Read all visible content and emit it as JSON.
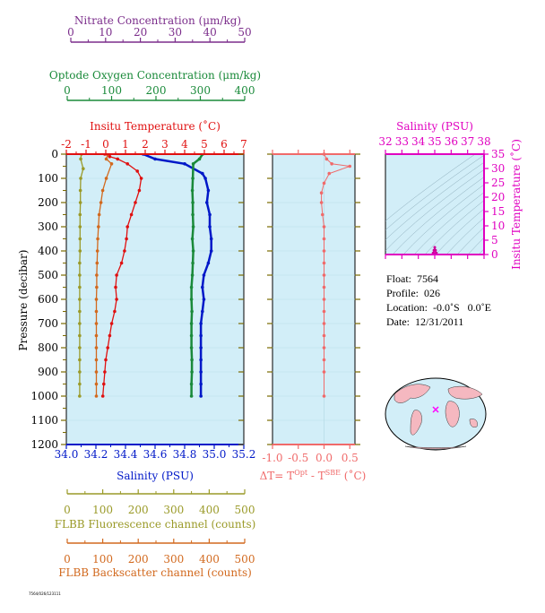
{
  "colors": {
    "nitrate": "#7b2d8b",
    "oxygen": "#1a8a3a",
    "temperature": "#e01010",
    "salinity": "#0018c8",
    "delta": "#f06a6a",
    "fluorescence": "#9a9a28",
    "backscatter": "#d2691e",
    "ts_axis": "#e000c0",
    "panel_fill": "#d2eef8",
    "land": "#f5b8c0",
    "tick": "#7a6a00"
  },
  "axes": {
    "nitrate": {
      "label": "Nitrate Concentration (μm/kg)",
      "ticks": [
        "0",
        "10",
        "20",
        "30",
        "40",
        "50"
      ],
      "range": [
        0,
        50
      ]
    },
    "oxygen": {
      "label": "Optode Oxygen Concentration (μm/kg)",
      "ticks": [
        "0",
        "100",
        "200",
        "300",
        "400"
      ],
      "range": [
        0,
        400
      ]
    },
    "temperature": {
      "label": "Insitu Temperature (˚C)",
      "ticks": [
        "-2",
        "-1",
        "0",
        "1",
        "2",
        "3",
        "4",
        "5",
        "6",
        "7"
      ],
      "range": [
        -2,
        7
      ]
    },
    "salinity": {
      "label": "Salinity (PSU)",
      "ticks": [
        "34.0",
        "34.2",
        "34.4",
        "34.6",
        "34.8",
        "35.0",
        "35.2"
      ],
      "range": [
        34.0,
        35.2
      ]
    },
    "pressure": {
      "label": "Pressure (decibar)",
      "ticks": [
        "0",
        "100",
        "200",
        "300",
        "400",
        "500",
        "600",
        "700",
        "800",
        "900",
        "1000",
        "1100",
        "1200"
      ],
      "range": [
        0,
        1200
      ]
    },
    "fluorescence": {
      "label": "FLBB Fluorescence channel (counts)",
      "ticks": [
        "0",
        "100",
        "200",
        "300",
        "400",
        "500"
      ],
      "range": [
        0,
        500
      ]
    },
    "backscatter": {
      "label": "FLBB Backscatter channel (counts)",
      "ticks": [
        "0",
        "100",
        "200",
        "300",
        "400",
        "500"
      ],
      "range": [
        0,
        500
      ]
    },
    "delta": {
      "label_prefix": "ΔT= T",
      "sup1": "Opt",
      "label_mid": " - T",
      "sup2": "SBE",
      "label_suffix": " (˚C)",
      "ticks": [
        "-1.0",
        "-0.5",
        "0.0",
        "0.5"
      ],
      "range": [
        -1.0,
        0.6
      ]
    },
    "ts_salinity": {
      "label": "Salinity (PSU)",
      "ticks": [
        "32",
        "33",
        "34",
        "35",
        "36",
        "37",
        "38"
      ],
      "range": [
        32,
        38
      ]
    },
    "ts_temperature": {
      "label": "Insitu Temperature (˚C)",
      "ticks": [
        "0",
        "5",
        "10",
        "15",
        "20",
        "25",
        "30",
        "35"
      ],
      "range": [
        0,
        35
      ]
    }
  },
  "info": {
    "float": "Float:  7564",
    "profile": "Profile:  026",
    "location": "Location:  -0.0˚S   0.0˚E",
    "date": "Date:  12/31/2011"
  },
  "footer": "7564/026/123111",
  "chart_data": [
    {
      "type": "line",
      "name": "profile",
      "series": [
        {
          "name": "Insitu Temperature",
          "axis": "temperature",
          "x": [
            -0.05,
            0.2,
            0.6,
            1.1,
            1.6,
            1.8,
            1.7,
            1.5,
            1.3,
            1.1,
            1.05,
            0.95,
            0.8,
            0.55,
            0.5,
            0.55,
            0.45,
            0.3,
            0.2,
            0.1,
            0.0,
            -0.05,
            -0.1,
            -0.15
          ],
          "y": [
            0,
            10,
            20,
            40,
            70,
            100,
            150,
            200,
            250,
            300,
            350,
            400,
            450,
            500,
            550,
            600,
            650,
            700,
            750,
            800,
            850,
            900,
            950,
            1000
          ]
        },
        {
          "name": "Salinity",
          "axis": "salinity",
          "x": [
            34.52,
            34.6,
            34.8,
            34.92,
            34.94,
            34.96,
            34.95,
            34.97,
            34.97,
            34.98,
            34.98,
            34.96,
            34.93,
            34.92,
            34.93,
            34.92,
            34.91,
            34.91,
            34.91,
            34.91,
            34.91,
            34.91,
            34.91
          ],
          "y": [
            0,
            20,
            40,
            80,
            100,
            150,
            200,
            250,
            300,
            350,
            400,
            450,
            500,
            550,
            600,
            650,
            700,
            750,
            800,
            850,
            900,
            950,
            1000
          ]
        },
        {
          "name": "Optode Oxygen",
          "axis": "oxygen",
          "x": [
            305,
            298,
            284,
            283,
            282,
            283,
            283,
            284,
            282,
            284,
            283,
            282,
            280,
            280,
            281,
            280,
            280,
            280,
            281,
            281,
            280,
            280
          ],
          "y": [
            0,
            20,
            40,
            100,
            150,
            200,
            250,
            300,
            350,
            400,
            450,
            500,
            550,
            600,
            650,
            700,
            750,
            800,
            850,
            900,
            950,
            1000
          ]
        },
        {
          "name": "FLBB Fluorescence",
          "axis": "fluorescence",
          "x": [
            40,
            38,
            45,
            38,
            37,
            37,
            36,
            36,
            36,
            36,
            35,
            35,
            35,
            35,
            35,
            35,
            35,
            35,
            35,
            35,
            35,
            35
          ],
          "y": [
            0,
            20,
            60,
            100,
            150,
            200,
            250,
            300,
            350,
            400,
            450,
            500,
            550,
            600,
            650,
            700,
            750,
            800,
            850,
            900,
            950,
            1000
          ]
        },
        {
          "name": "FLBB Backscatter",
          "axis": "backscatter",
          "x": [
            115,
            110,
            125,
            110,
            100,
            95,
            90,
            88,
            86,
            85,
            84,
            83,
            83,
            82,
            82,
            82,
            82,
            82,
            82,
            82,
            82,
            82
          ],
          "y": [
            0,
            20,
            40,
            100,
            150,
            200,
            250,
            300,
            350,
            400,
            450,
            500,
            550,
            600,
            650,
            700,
            750,
            800,
            850,
            900,
            950,
            1000
          ]
        }
      ]
    },
    {
      "type": "scatter",
      "name": "delta_t",
      "series": [
        {
          "name": "ΔT",
          "axis": "delta",
          "x": [
            0.0,
            0.05,
            0.15,
            0.5,
            0.1,
            0.0,
            -0.05,
            -0.05,
            -0.03,
            0.0,
            0.0,
            0.0,
            0.0,
            0.0,
            0.0,
            0.0,
            0.0,
            0.0,
            0.0,
            0.0,
            0.0,
            0.0,
            0.0
          ],
          "y": [
            0,
            20,
            40,
            50,
            80,
            120,
            160,
            200,
            250,
            300,
            350,
            400,
            450,
            500,
            550,
            600,
            650,
            700,
            750,
            800,
            850,
            900,
            1000
          ]
        }
      ]
    },
    {
      "type": "scatter",
      "name": "ts_diagram",
      "series": [
        {
          "name": "T-S",
          "axis": "ts",
          "x": [
            34.9,
            34.95,
            35.0,
            35.05,
            35.1
          ],
          "y": [
            0.5,
            1.5,
            2.5,
            1.5,
            0.5
          ]
        }
      ]
    }
  ]
}
